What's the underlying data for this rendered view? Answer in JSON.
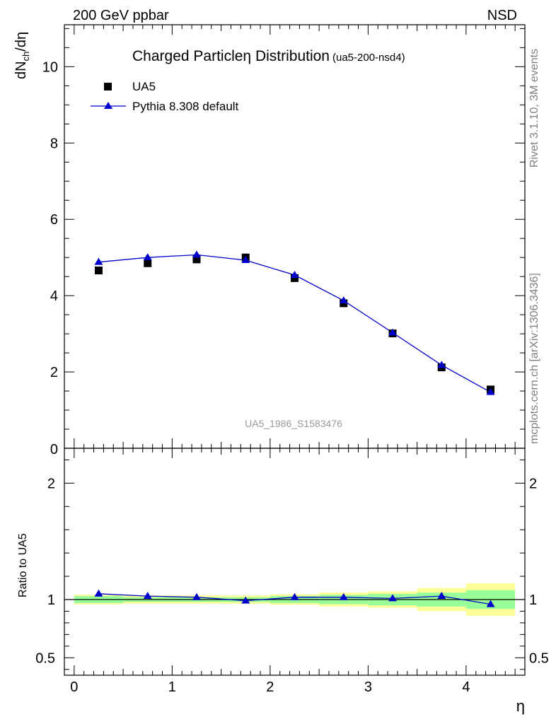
{
  "header": {
    "energy_label": "200 GeV ppbar",
    "process_label": "NSD"
  },
  "side_labels": {
    "rivet": "Rivet 3.1.10,  3M events",
    "mcplots": "mcplots.cern.ch [arXiv:1306.3436]"
  },
  "watermark": "UA5_1986_S1583476",
  "chart_data": {
    "type": "scatter",
    "title": "Charged Particle",
    "title_symbol": "η",
    "title_rest": " Distribution",
    "title_tag": "(ua5-200-nsd4)",
    "ylabel_main": {
      "base": "dN",
      "sub": "ch",
      "rest": "/dη"
    },
    "ylabel_ratio": "Ratio to UA5",
    "xlabel": "η",
    "xlim": [
      -0.1,
      4.6
    ],
    "ylim_main": [
      0,
      11.1
    ],
    "ylim_ratio": [
      0.35,
      2.3
    ],
    "x_ticks": [
      "0",
      "1",
      "2",
      "3",
      "4"
    ],
    "y_ticks_main": [
      "0",
      "2",
      "4",
      "6",
      "8",
      "10"
    ],
    "y_ticks_ratio": [
      "0.5",
      "1",
      "2"
    ],
    "legend": [
      {
        "name": "UA5",
        "marker": "square",
        "color": "#000000"
      },
      {
        "name": "Pythia 8.308 default",
        "marker": "triangle",
        "color": "#0000cc"
      }
    ],
    "bin_edges": [
      0,
      0.5,
      1.0,
      1.5,
      2.0,
      2.5,
      3.0,
      3.5,
      4.0,
      4.5
    ],
    "x": [
      0.25,
      0.75,
      1.25,
      1.75,
      2.25,
      2.75,
      3.25,
      3.75,
      4.25
    ],
    "series": [
      {
        "name": "UA5",
        "values": [
          4.66,
          4.85,
          4.95,
          5.0,
          4.46,
          3.8,
          3.01,
          2.12,
          1.54
        ]
      },
      {
        "name": "Pythia 8.308 default",
        "values": [
          4.88,
          5.0,
          5.07,
          4.93,
          4.54,
          3.87,
          3.03,
          2.18,
          1.47
        ]
      }
    ],
    "ratio": [
      1.05,
      1.03,
      1.02,
      0.99,
      1.02,
      1.02,
      1.01,
      1.03,
      0.96
    ],
    "band_stat": [
      0.03,
      0.02,
      0.02,
      0.02,
      0.03,
      0.04,
      0.05,
      0.06,
      0.08
    ],
    "band_total": [
      0.04,
      0.035,
      0.035,
      0.035,
      0.045,
      0.06,
      0.07,
      0.1,
      0.14
    ],
    "colors": {
      "data": "#000000",
      "mc": "#0000cc",
      "band_stat": "#99ff99",
      "band_total": "#ffff99",
      "watermark": "#999999",
      "side_text": "#808080"
    }
  }
}
